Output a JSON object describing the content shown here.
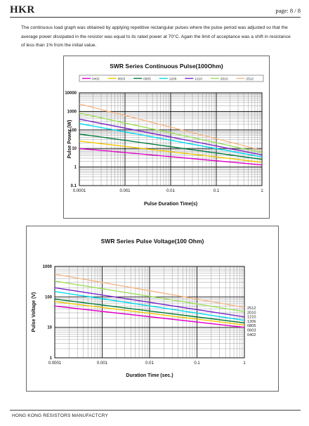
{
  "header": {
    "logo": "HKR",
    "page": "page:  8 / 8"
  },
  "intro_text": "The continuous load graph was obtained by applying repetitive rectangular pulses where the pulse period was adjusted so that the average power dissipated in the resistor was equal to its rated power at 70°C. Again the limit of acceptance was a shift in resistance of less than 1% from the initial value.",
  "footer": {
    "text": "HONG KONG RESISTORS MANUFACTCRY"
  },
  "chart_data": [
    {
      "type": "line",
      "title": "SWR Series Continuous Pulse(100Ohm)",
      "xlabel": "Pulse Duration Time(s)",
      "ylabel": "Pulse Power (W)",
      "xscale": "log",
      "yscale": "log",
      "xlim": [
        0.0001,
        1
      ],
      "ylim": [
        0.1,
        10000
      ],
      "xticks": [
        "0.0001",
        "0.001",
        "0.01",
        "0.1",
        "1"
      ],
      "yticks": [
        "0.1",
        "1",
        "10",
        "100",
        "1000",
        "10000"
      ],
      "legend": "top",
      "grid": true,
      "series": [
        {
          "name": "0402",
          "color": "#e000c8",
          "x": [
            0.0001,
            1
          ],
          "y": [
            10,
            1.3
          ]
        },
        {
          "name": "0603",
          "color": "#f0c800",
          "x": [
            0.0001,
            1
          ],
          "y": [
            25,
            1.8
          ]
        },
        {
          "name": "0805",
          "color": "#007a3a",
          "x": [
            0.0001,
            1
          ],
          "y": [
            60,
            2.6
          ]
        },
        {
          "name": "1206",
          "color": "#00d8f0",
          "x": [
            0.0001,
            1
          ],
          "y": [
            220,
            3.5
          ]
        },
        {
          "name": "1210",
          "color": "#7a28c8",
          "x": [
            0.0001,
            1
          ],
          "y": [
            380,
            4.5
          ]
        },
        {
          "name": "2010",
          "color": "#a0e060",
          "x": [
            0.0001,
            1
          ],
          "y": [
            800,
            6
          ]
        },
        {
          "name": "2512",
          "color": "#f5b888",
          "x": [
            0.0001,
            1
          ],
          "y": [
            2500,
            8
          ]
        }
      ]
    },
    {
      "type": "line",
      "title": "SWR Series Pulse Voltage(100 Ohm)",
      "xlabel": "Duration Time (sec.)",
      "ylabel": "Pulse Voltage (V)",
      "xscale": "log",
      "yscale": "log",
      "xlim": [
        0.0001,
        1
      ],
      "ylim": [
        1,
        1000
      ],
      "xticks": [
        "0.0001",
        "0.001",
        "0.01",
        "0.1",
        "1"
      ],
      "yticks": [
        "1",
        "10",
        "100",
        "1000"
      ],
      "legend": "right",
      "grid": true,
      "series": [
        {
          "name": "2512",
          "color": "#f5b888",
          "x": [
            0.0001,
            1
          ],
          "y": [
            560,
            45
          ]
        },
        {
          "name": "2010",
          "color": "#a0e060",
          "x": [
            0.0001,
            1
          ],
          "y": [
            330,
            33
          ]
        },
        {
          "name": "1210",
          "color": "#7a28c8",
          "x": [
            0.0001,
            1
          ],
          "y": [
            200,
            22
          ]
        },
        {
          "name": "1206",
          "color": "#00d8f0",
          "x": [
            0.0001,
            1
          ],
          "y": [
            150,
            17
          ]
        },
        {
          "name": "0805",
          "color": "#007a3a",
          "x": [
            0.0001,
            1
          ],
          "y": [
            85,
            14
          ]
        },
        {
          "name": "0603",
          "color": "#f0c800",
          "x": [
            0.0001,
            1
          ],
          "y": [
            70,
            12
          ]
        },
        {
          "name": "0402",
          "color": "#e000c8",
          "x": [
            0.0001,
            1
          ],
          "y": [
            50,
            10
          ]
        }
      ]
    }
  ]
}
